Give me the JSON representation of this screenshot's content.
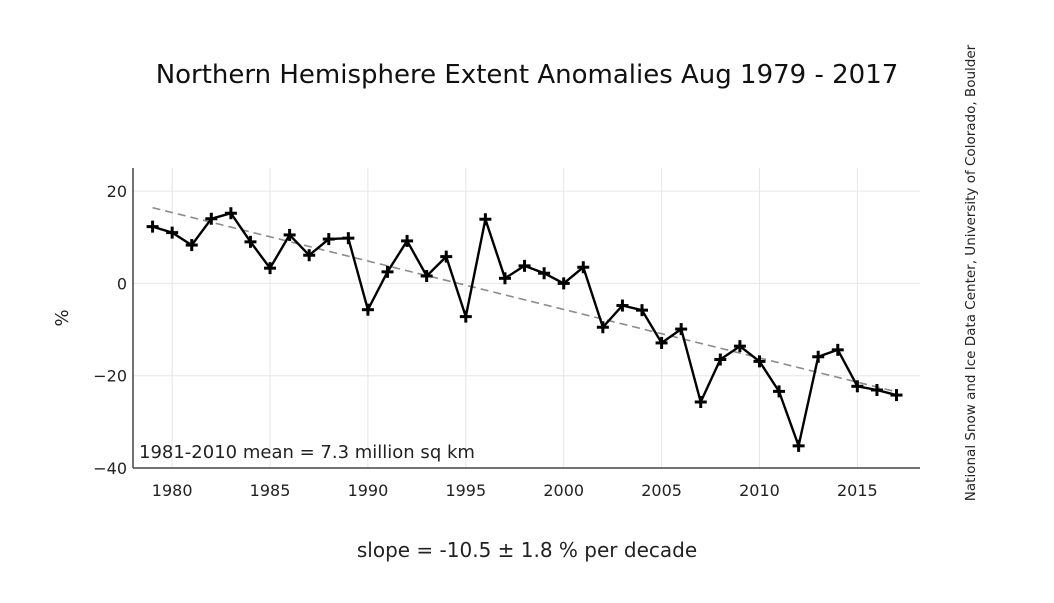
{
  "chart_data": {
    "type": "line",
    "title": "Northern Hemisphere Extent Anomalies Aug 1979 - 2017",
    "xlabel": "",
    "ylabel": "%",
    "xlim": [
      1978,
      2018.2
    ],
    "ylim": [
      -40,
      25
    ],
    "xticks": [
      1980,
      1985,
      1990,
      1995,
      2000,
      2005,
      2010,
      2015
    ],
    "yticks": [
      20,
      0,
      -20,
      -40
    ],
    "ytick_labels": [
      "20",
      "0",
      "−20",
      "−40"
    ],
    "grid": true,
    "x": [
      1979,
      1980,
      1981,
      1982,
      1983,
      1984,
      1985,
      1986,
      1987,
      1988,
      1989,
      1990,
      1991,
      1992,
      1993,
      1994,
      1995,
      1996,
      1997,
      1998,
      1999,
      2000,
      2001,
      2002,
      2003,
      2004,
      2005,
      2006,
      2007,
      2008,
      2009,
      2010,
      2011,
      2012,
      2013,
      2014,
      2015,
      2016,
      2017
    ],
    "series": [
      {
        "values": [
          12.3,
          11.0,
          8.3,
          14.0,
          15.2,
          9.0,
          3.3,
          10.5,
          6.1,
          9.6,
          9.8,
          -5.7,
          2.5,
          9.2,
          1.6,
          5.8,
          -7.2,
          13.9,
          1.1,
          3.8,
          2.2,
          0.0,
          3.5,
          -9.5,
          -4.8,
          -5.8,
          -12.9,
          -9.9,
          -25.7,
          -16.5,
          -13.6,
          -16.9,
          -23.4,
          -35.2,
          -15.9,
          -14.4,
          -22.3,
          -23.1,
          -24.2
        ]
      }
    ],
    "trend": {
      "style": "dashed",
      "x": [
        1979,
        2017
      ],
      "y": [
        16.4,
        -23.5
      ]
    },
    "annotation": "1981-2010 mean = 7.3 million sq km",
    "slope_text": "slope = -10.5 ± 1.8 % per decade",
    "credit": "National Snow and Ice Data Center, University of Colorado, Boulder",
    "colors": {
      "line": "#000000",
      "trend": "#8c8c8c",
      "grid": "#e6e6e6",
      "axis": "#444444"
    }
  }
}
